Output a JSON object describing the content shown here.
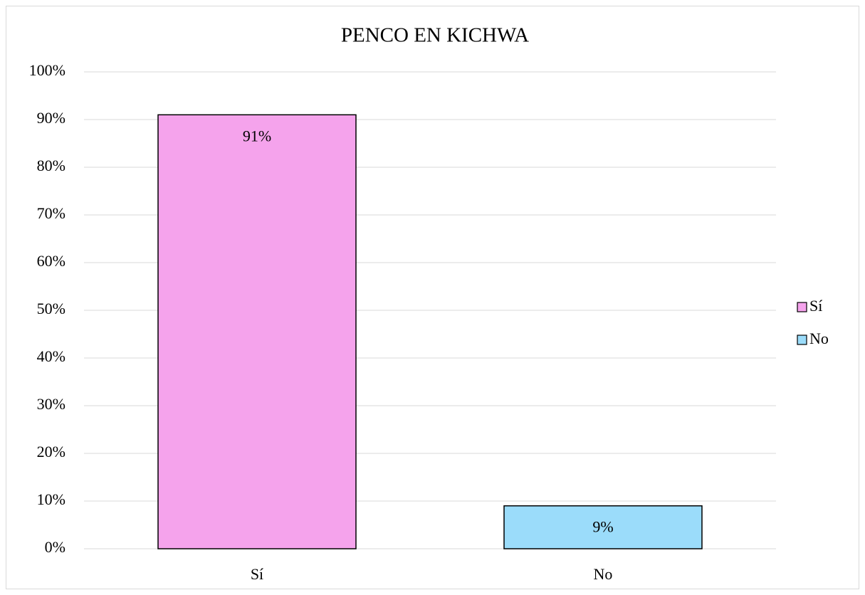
{
  "chart_data": {
    "type": "bar",
    "title": "PENCO EN KICHWA",
    "categories": [
      "Sí",
      "No"
    ],
    "values": [
      91,
      9
    ],
    "value_labels": [
      "91%",
      "9%"
    ],
    "colors": [
      "#f5a3ec",
      "#9bdcfa"
    ],
    "ylim": [
      0,
      100
    ],
    "yticks": [
      {
        "value": 0,
        "label": "0%"
      },
      {
        "value": 10,
        "label": "10%"
      },
      {
        "value": 20,
        "label": "20%"
      },
      {
        "value": 30,
        "label": "30%"
      },
      {
        "value": 40,
        "label": "40%"
      },
      {
        "value": 50,
        "label": "50%"
      },
      {
        "value": 60,
        "label": "60%"
      },
      {
        "value": 70,
        "label": "70%"
      },
      {
        "value": 80,
        "label": "80%"
      },
      {
        "value": 90,
        "label": "90%"
      },
      {
        "value": 100,
        "label": "100%"
      }
    ],
    "grid": true,
    "legend": "right"
  }
}
